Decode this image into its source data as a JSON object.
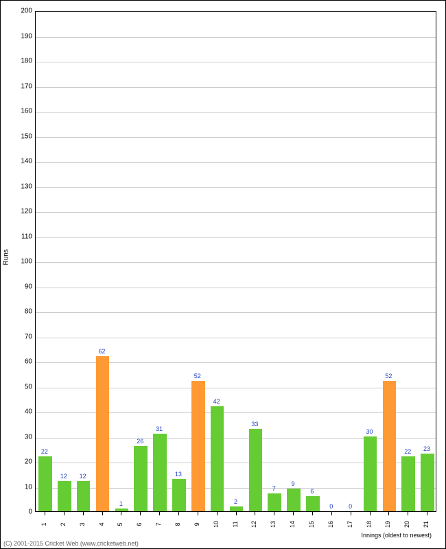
{
  "chart": {
    "type": "bar",
    "ylabel": "Runs",
    "xlabel": "Innings (oldest to newest)",
    "copyright": "(C) 2001-2015 Cricket Web (www.cricketweb.net)",
    "ylim": [
      0,
      200
    ],
    "ytick_step": 10,
    "background_color": "#ffffff",
    "grid_color": "#cccccc",
    "border_color": "#000000",
    "label_font_color": "#2040c0",
    "bar_width_ratio": 0.7,
    "colors": {
      "default": "#66cc33",
      "highlight": "#ff9933"
    },
    "data": [
      {
        "innings": "1",
        "runs": 22,
        "color": "default"
      },
      {
        "innings": "2",
        "runs": 12,
        "color": "default"
      },
      {
        "innings": "3",
        "runs": 12,
        "color": "default"
      },
      {
        "innings": "4",
        "runs": 62,
        "color": "highlight"
      },
      {
        "innings": "5",
        "runs": 1,
        "color": "default"
      },
      {
        "innings": "6",
        "runs": 26,
        "color": "default"
      },
      {
        "innings": "7",
        "runs": 31,
        "color": "default"
      },
      {
        "innings": "8",
        "runs": 13,
        "color": "default"
      },
      {
        "innings": "9",
        "runs": 52,
        "color": "highlight"
      },
      {
        "innings": "10",
        "runs": 42,
        "color": "default"
      },
      {
        "innings": "11",
        "runs": 2,
        "color": "default"
      },
      {
        "innings": "12",
        "runs": 33,
        "color": "default"
      },
      {
        "innings": "13",
        "runs": 7,
        "color": "default"
      },
      {
        "innings": "14",
        "runs": 9,
        "color": "default"
      },
      {
        "innings": "15",
        "runs": 6,
        "color": "default"
      },
      {
        "innings": "16",
        "runs": 0,
        "color": "default"
      },
      {
        "innings": "17",
        "runs": 0,
        "color": "default"
      },
      {
        "innings": "18",
        "runs": 30,
        "color": "default"
      },
      {
        "innings": "19",
        "runs": 52,
        "color": "highlight"
      },
      {
        "innings": "20",
        "runs": 22,
        "color": "default"
      },
      {
        "innings": "21",
        "runs": 23,
        "color": "default"
      }
    ]
  }
}
